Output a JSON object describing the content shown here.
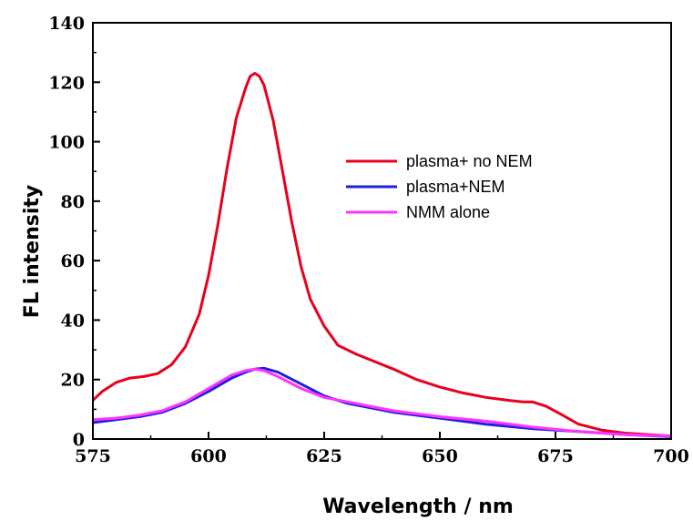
{
  "chart_data": {
    "type": "line",
    "xlabel": "Wavelength / nm",
    "ylabel": "FL intensity",
    "xlim": [
      575,
      700
    ],
    "ylim": [
      0,
      140
    ],
    "xticks": [
      575,
      600,
      625,
      650,
      675,
      700
    ],
    "yticks": [
      0,
      20,
      40,
      60,
      80,
      100,
      120,
      140
    ],
    "grid": false,
    "legend_position": "right-center",
    "series": [
      {
        "name": "plasma+ no NEM",
        "color": "#e8001c",
        "x": [
          575,
          577,
          580,
          583,
          586,
          589,
          592,
          595,
          598,
          600,
          602,
          604,
          606,
          608,
          609,
          610,
          611,
          612,
          614,
          616,
          618,
          620,
          622,
          625,
          628,
          632,
          636,
          640,
          645,
          650,
          655,
          660,
          665,
          668,
          670,
          673,
          676,
          680,
          685,
          690,
          695,
          700
        ],
        "values": [
          13,
          16,
          19,
          20.5,
          21,
          22,
          25,
          31,
          42,
          55,
          72,
          91,
          108,
          118,
          122,
          123,
          122,
          119,
          107,
          90,
          73,
          58,
          47,
          38,
          31.5,
          28.5,
          26,
          23.5,
          20,
          17.5,
          15.5,
          14,
          13,
          12.5,
          12.5,
          11,
          8.5,
          5,
          3,
          2,
          1.5,
          1
        ]
      },
      {
        "name": "plasma+NEM",
        "color": "#1f1fe0",
        "x": [
          575,
          580,
          585,
          590,
          595,
          600,
          605,
          608,
          610,
          612,
          615,
          620,
          625,
          630,
          640,
          650,
          660,
          670,
          680,
          690,
          700
        ],
        "values": [
          5.5,
          6.5,
          7.5,
          9,
          12,
          16,
          20.5,
          22.5,
          23.5,
          23.8,
          22.5,
          18.5,
          14.5,
          12,
          9,
          7,
          5,
          3.5,
          2.5,
          1.5,
          0.8
        ]
      },
      {
        "name": "NMM alone",
        "color": "#ff33ff",
        "x": [
          575,
          580,
          585,
          590,
          595,
          600,
          605,
          608,
          610,
          612,
          615,
          620,
          625,
          630,
          640,
          650,
          660,
          670,
          680,
          690,
          700
        ],
        "values": [
          6.5,
          7,
          8,
          9.5,
          12.5,
          17,
          21.5,
          23,
          23.5,
          23,
          21,
          17,
          14,
          12.5,
          9.5,
          7.5,
          6,
          4,
          2.5,
          1.5,
          1
        ]
      }
    ]
  }
}
